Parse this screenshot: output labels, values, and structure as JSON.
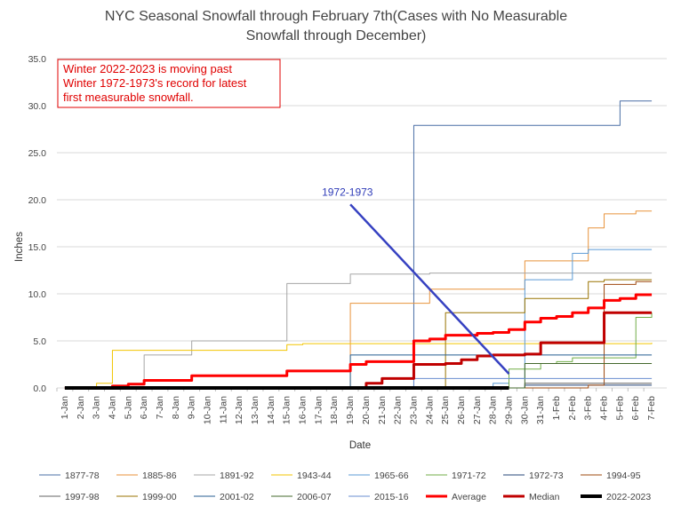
{
  "chart_data": {
    "type": "line",
    "title_lines": [
      "NYC Seasonal Snowfall through February 7th(Cases with No Measurable",
      "Snowfall through December)"
    ],
    "xlabel": "Date",
    "ylabel": "Inches",
    "ylim": [
      0,
      35
    ],
    "yticks": [
      "0.0",
      "5.0",
      "10.0",
      "15.0",
      "20.0",
      "25.0",
      "30.0",
      "35.0"
    ],
    "grid": "horizontal",
    "legend_position": "bottom",
    "categories": [
      "1-Jan",
      "2-Jan",
      "3-Jan",
      "4-Jan",
      "5-Jan",
      "6-Jan",
      "7-Jan",
      "8-Jan",
      "9-Jan",
      "10-Jan",
      "11-Jan",
      "12-Jan",
      "13-Jan",
      "14-Jan",
      "15-Jan",
      "16-Jan",
      "17-Jan",
      "18-Jan",
      "19-Jan",
      "20-Jan",
      "21-Jan",
      "22-Jan",
      "23-Jan",
      "24-Jan",
      "25-Jan",
      "26-Jan",
      "27-Jan",
      "28-Jan",
      "29-Jan",
      "30-Jan",
      "31-Jan",
      "1-Feb",
      "2-Feb",
      "3-Feb",
      "4-Feb",
      "5-Feb",
      "6-Feb",
      "7-Feb"
    ],
    "annotation": {
      "lines": [
        "Winter 2022-2023 is moving past",
        "Winter 1972-1973's record for latest",
        "first measurable snowfall."
      ],
      "color": "#e00000",
      "border_color": "#e00000"
    },
    "arrow": {
      "label": "1972-1973",
      "color": "#3641c1",
      "from": {
        "x": "19-Jan",
        "y": 19.5
      },
      "to": {
        "x": "29-Jan",
        "y": 1.5
      }
    },
    "series": [
      {
        "name": "1877-78",
        "color": "#4a6fa5",
        "width": 1,
        "values": [
          0,
          0,
          0,
          0,
          0,
          0,
          0,
          0,
          0,
          0,
          0,
          0,
          0,
          0,
          0,
          0,
          0,
          0,
          0,
          0,
          0,
          0,
          27.9,
          27.9,
          27.9,
          27.9,
          27.9,
          27.9,
          27.9,
          27.9,
          27.9,
          27.9,
          27.9,
          27.9,
          27.9,
          30.5,
          30.5,
          30.5
        ]
      },
      {
        "name": "1885-86",
        "color": "#e8923a",
        "width": 1,
        "values": [
          0,
          0,
          0,
          0,
          0,
          0,
          0,
          0,
          0,
          0,
          0,
          0,
          0,
          0,
          0,
          0,
          0,
          0,
          9.0,
          9.0,
          9.0,
          9.0,
          9.0,
          10.5,
          10.5,
          10.5,
          10.5,
          10.5,
          10.5,
          13.5,
          13.5,
          13.5,
          13.5,
          17.0,
          18.5,
          18.5,
          18.8,
          18.8
        ]
      },
      {
        "name": "1891-92",
        "color": "#a5a5a5",
        "width": 1,
        "values": [
          0,
          0,
          0,
          0.3,
          0.5,
          3.5,
          3.5,
          3.5,
          5.0,
          5.0,
          5.0,
          5.0,
          5.0,
          5.0,
          11.1,
          11.1,
          11.1,
          11.1,
          12.1,
          12.1,
          12.1,
          12.1,
          12.1,
          12.2,
          12.2,
          12.2,
          12.2,
          12.2,
          12.2,
          12.2,
          12.2,
          12.2,
          12.2,
          12.2,
          12.2,
          12.2,
          12.2,
          12.2
        ]
      },
      {
        "name": "1943-44",
        "color": "#f2c500",
        "width": 1,
        "values": [
          0,
          0,
          0.5,
          4.0,
          4.0,
          4.0,
          4.0,
          4.0,
          4.0,
          4.0,
          4.0,
          4.0,
          4.0,
          4.0,
          4.6,
          4.7,
          4.7,
          4.7,
          4.7,
          4.7,
          4.7,
          4.7,
          4.7,
          4.7,
          4.7,
          4.7,
          4.7,
          4.7,
          4.7,
          4.7,
          4.7,
          4.7,
          4.7,
          4.7,
          4.7,
          4.7,
          4.7,
          4.8
        ]
      },
      {
        "name": "1965-66",
        "color": "#5b9bd5",
        "width": 1,
        "values": [
          0,
          0,
          0,
          0,
          0,
          0,
          0,
          0,
          0,
          0,
          0,
          0,
          0,
          0,
          0,
          0,
          0,
          0,
          0,
          0,
          0,
          0,
          0,
          0,
          0,
          0,
          0,
          0.5,
          1.0,
          11.5,
          11.5,
          11.5,
          14.3,
          14.7,
          14.7,
          14.7,
          14.7,
          14.7
        ]
      },
      {
        "name": "1971-72",
        "color": "#70ad47",
        "width": 1,
        "values": [
          0,
          0,
          0,
          0,
          0,
          0,
          0,
          0,
          0,
          0,
          0,
          0,
          0,
          0,
          0,
          0,
          0,
          0,
          0,
          0,
          0,
          0,
          0,
          0,
          0,
          0,
          0,
          0,
          2.0,
          2.0,
          2.6,
          2.8,
          3.2,
          3.2,
          3.2,
          3.2,
          7.5,
          8.0
        ]
      },
      {
        "name": "1972-73",
        "color": "#264478",
        "width": 1,
        "values": [
          0,
          0,
          0,
          0,
          0,
          0,
          0,
          0,
          0,
          0,
          0,
          0,
          0,
          0,
          0,
          0,
          0,
          0,
          0,
          0,
          0,
          0,
          0,
          0,
          0,
          0,
          0,
          0,
          0,
          0.3,
          0.3,
          0.3,
          0.3,
          0.3,
          0.3,
          0.3,
          0.3,
          0.3
        ]
      },
      {
        "name": "1994-95",
        "color": "#9e480e",
        "width": 1,
        "values": [
          0,
          0,
          0,
          0,
          0,
          0,
          0,
          0,
          0,
          0,
          0,
          0,
          0,
          0,
          0,
          0,
          0,
          0,
          0,
          0,
          0,
          0,
          0,
          0,
          0,
          0,
          0,
          0,
          0,
          0,
          0,
          0,
          0,
          0.3,
          11.0,
          11.0,
          11.3,
          11.3
        ]
      },
      {
        "name": "1997-98",
        "color": "#636363",
        "width": 1,
        "values": [
          0,
          0,
          0,
          0,
          0,
          0,
          0,
          0,
          0,
          0,
          0,
          0,
          0,
          0,
          0,
          0,
          0,
          0,
          0,
          0,
          0,
          0,
          0,
          0,
          0,
          0,
          0,
          0,
          0,
          0.5,
          0.5,
          0.5,
          0.5,
          0.5,
          0.5,
          0.5,
          0.5,
          0.5
        ]
      },
      {
        "name": "1999-00",
        "color": "#997300",
        "width": 1,
        "values": [
          0,
          0,
          0,
          0,
          0,
          0,
          0,
          0,
          0,
          0,
          0,
          0,
          0,
          0,
          0,
          0,
          0,
          0,
          0,
          0,
          0,
          0,
          0,
          0,
          8.0,
          8.0,
          8.0,
          8.0,
          8.0,
          9.5,
          9.5,
          9.5,
          9.5,
          11.3,
          11.5,
          11.5,
          11.5,
          11.5
        ]
      },
      {
        "name": "2001-02",
        "color": "#255e91",
        "width": 1,
        "values": [
          0,
          0,
          0,
          0,
          0,
          0,
          0,
          0,
          0,
          0,
          0,
          0,
          0,
          0,
          0,
          0,
          0,
          0,
          3.5,
          3.5,
          3.5,
          3.5,
          3.5,
          3.5,
          3.5,
          3.5,
          3.5,
          3.5,
          3.5,
          3.5,
          3.5,
          3.5,
          3.5,
          3.5,
          3.5,
          3.5,
          3.5,
          3.5
        ]
      },
      {
        "name": "2006-07",
        "color": "#43682b",
        "width": 1,
        "values": [
          0,
          0,
          0,
          0,
          0,
          0,
          0,
          0,
          0,
          0,
          0,
          0,
          0,
          0,
          0,
          0,
          0,
          0,
          0,
          0,
          0,
          0,
          0,
          0,
          0,
          0,
          0,
          0,
          0,
          2.6,
          2.6,
          2.6,
          2.6,
          2.6,
          2.6,
          2.6,
          2.6,
          2.6
        ]
      },
      {
        "name": "2015-16",
        "color": "#698ed0",
        "width": 1,
        "values": [
          0,
          0,
          0,
          0,
          0,
          0,
          0,
          0,
          0,
          0,
          0,
          0,
          0,
          0,
          0,
          0,
          0,
          0,
          0,
          0,
          0,
          0,
          1.0,
          1.0,
          1.0,
          1.0,
          1.0,
          1.0,
          1.0,
          1.0,
          1.0,
          1.0,
          1.0,
          1.0,
          1.0,
          1.0,
          1.0,
          1.0
        ]
      },
      {
        "name": "Average",
        "color": "#ff0000",
        "width": 3,
        "values": [
          0,
          0,
          0,
          0.2,
          0.4,
          0.8,
          0.8,
          0.8,
          1.3,
          1.3,
          1.3,
          1.3,
          1.3,
          1.3,
          1.8,
          1.8,
          1.8,
          1.8,
          2.5,
          2.8,
          2.8,
          2.8,
          5.0,
          5.2,
          5.6,
          5.6,
          5.8,
          5.9,
          6.2,
          7.0,
          7.4,
          7.6,
          8.0,
          8.5,
          9.3,
          9.5,
          9.9,
          9.9
        ]
      },
      {
        "name": "Median",
        "color": "#c00000",
        "width": 3,
        "values": [
          0,
          0,
          0,
          0,
          0,
          0,
          0,
          0,
          0,
          0,
          0,
          0,
          0,
          0,
          0,
          0,
          0,
          0,
          0,
          0.5,
          1.0,
          1.0,
          2.5,
          2.5,
          2.6,
          3.0,
          3.4,
          3.5,
          3.5,
          3.6,
          4.8,
          4.8,
          4.8,
          4.8,
          8.0,
          8.0,
          8.0,
          8.0
        ]
      },
      {
        "name": "2022-2023",
        "color": "#000000",
        "width": 4,
        "values": [
          0,
          0,
          0,
          0,
          0,
          0,
          0,
          0,
          0,
          0,
          0,
          0,
          0,
          0,
          0,
          0,
          0,
          0,
          0,
          0,
          0,
          0,
          0,
          0,
          0,
          0,
          0,
          0,
          0,
          null,
          null,
          null,
          null,
          null,
          null,
          null,
          null,
          null
        ]
      }
    ]
  }
}
